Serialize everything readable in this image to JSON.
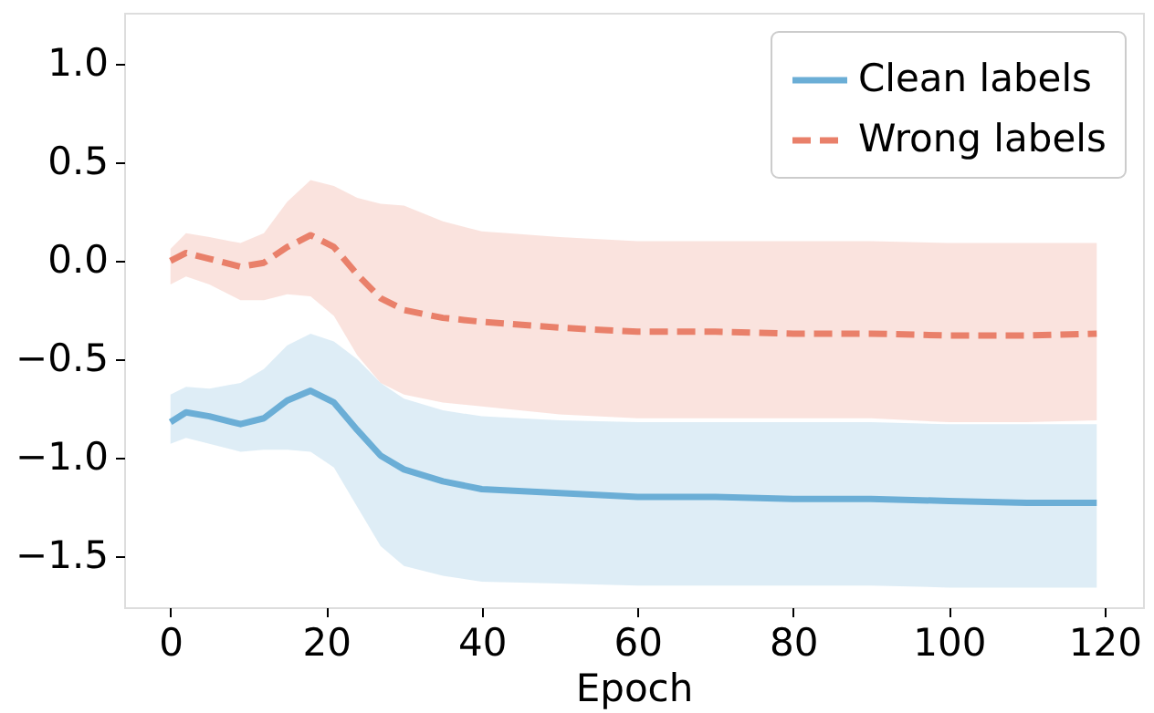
{
  "chart_data": {
    "type": "line",
    "xlabel": "Epoch",
    "x": [
      0,
      2,
      5,
      9,
      12,
      15,
      18,
      21,
      24,
      27,
      30,
      35,
      40,
      50,
      60,
      70,
      80,
      90,
      100,
      110,
      119
    ],
    "series": [
      {
        "name": "Clean labels",
        "color": "#6baed6",
        "line_style": "solid",
        "values": [
          -0.82,
          -0.77,
          -0.79,
          -0.83,
          -0.8,
          -0.71,
          -0.66,
          -0.72,
          -0.86,
          -0.99,
          -1.06,
          -1.12,
          -1.16,
          -1.18,
          -1.2,
          -1.2,
          -1.21,
          -1.21,
          -1.22,
          -1.23,
          -1.23
        ],
        "upper": [
          -0.68,
          -0.64,
          -0.65,
          -0.62,
          -0.55,
          -0.43,
          -0.37,
          -0.41,
          -0.5,
          -0.62,
          -0.7,
          -0.76,
          -0.79,
          -0.81,
          -0.82,
          -0.82,
          -0.82,
          -0.82,
          -0.83,
          -0.83,
          -0.83
        ],
        "lower": [
          -0.93,
          -0.9,
          -0.93,
          -0.97,
          -0.96,
          -0.96,
          -0.97,
          -1.05,
          -1.25,
          -1.45,
          -1.55,
          -1.6,
          -1.63,
          -1.64,
          -1.65,
          -1.65,
          -1.65,
          -1.65,
          -1.66,
          -1.66,
          -1.66
        ]
      },
      {
        "name": "Wrong labels",
        "color": "#e9806a",
        "line_style": "dashed",
        "values": [
          0.0,
          0.04,
          0.01,
          -0.03,
          -0.01,
          0.07,
          0.13,
          0.07,
          -0.07,
          -0.19,
          -0.25,
          -0.29,
          -0.31,
          -0.34,
          -0.36,
          -0.36,
          -0.37,
          -0.37,
          -0.38,
          -0.38,
          -0.37
        ],
        "upper": [
          0.06,
          0.14,
          0.12,
          0.09,
          0.14,
          0.3,
          0.41,
          0.38,
          0.32,
          0.29,
          0.28,
          0.2,
          0.15,
          0.12,
          0.1,
          0.1,
          0.1,
          0.1,
          0.09,
          0.09,
          0.09
        ],
        "lower": [
          -0.12,
          -0.08,
          -0.12,
          -0.2,
          -0.2,
          -0.17,
          -0.18,
          -0.28,
          -0.48,
          -0.62,
          -0.68,
          -0.72,
          -0.74,
          -0.78,
          -0.8,
          -0.8,
          -0.8,
          -0.8,
          -0.82,
          -0.82,
          -0.81
        ]
      }
    ],
    "xlim": [
      -5.95,
      124.95
    ],
    "xticks": [
      0,
      20,
      40,
      60,
      80,
      100,
      120
    ],
    "ylim": [
      -1.76,
      1.26
    ],
    "yticks": [
      {
        "value": -1.5,
        "label": "−1.5"
      },
      {
        "value": -1,
        "label": "−1.0"
      },
      {
        "value": -0.5,
        "label": "−0.5"
      },
      {
        "value": 0,
        "label": "0.0"
      },
      {
        "value": 0.5,
        "label": "0.5"
      },
      {
        "value": 1,
        "label": "1.0"
      }
    ],
    "grid": false,
    "legend": "top right"
  }
}
